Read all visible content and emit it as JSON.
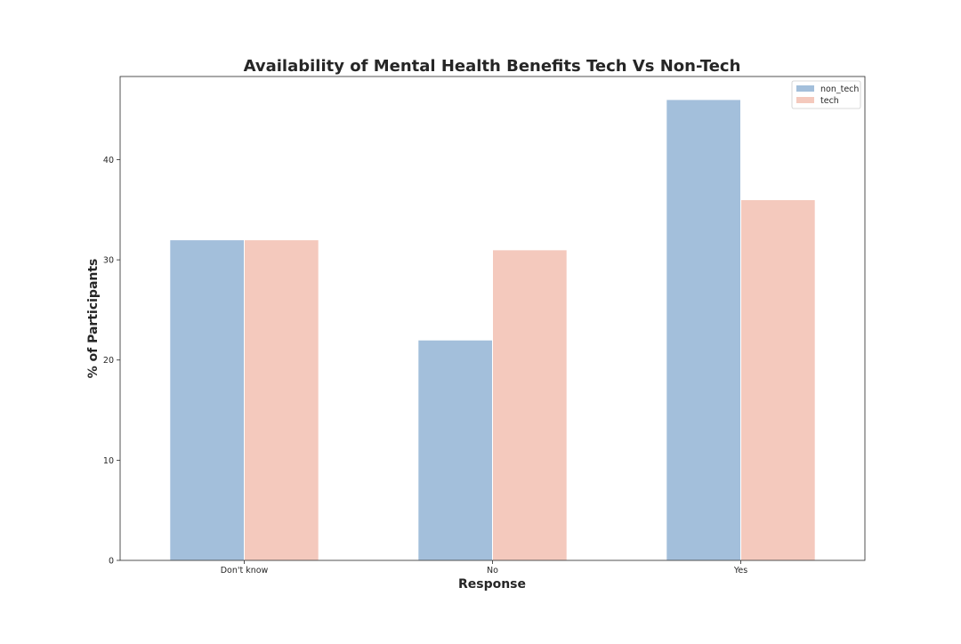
{
  "chart_data": {
    "type": "bar",
    "title": "Availability of Mental Health Benefits Tech Vs Non-Tech",
    "xlabel": "Response",
    "ylabel": "% of Participants",
    "categories": [
      "Don't know",
      "No",
      "Yes"
    ],
    "series": [
      {
        "name": "non_tech",
        "color": "#a3bfdb",
        "values": [
          32,
          22,
          46
        ]
      },
      {
        "name": "tech",
        "color": "#f4c9bd",
        "values": [
          32,
          31,
          36
        ]
      }
    ],
    "ylim": [
      0,
      48.3
    ],
    "yticks": [
      0,
      10,
      20,
      30,
      40
    ],
    "grid": false,
    "legend_position": "top-right"
  }
}
